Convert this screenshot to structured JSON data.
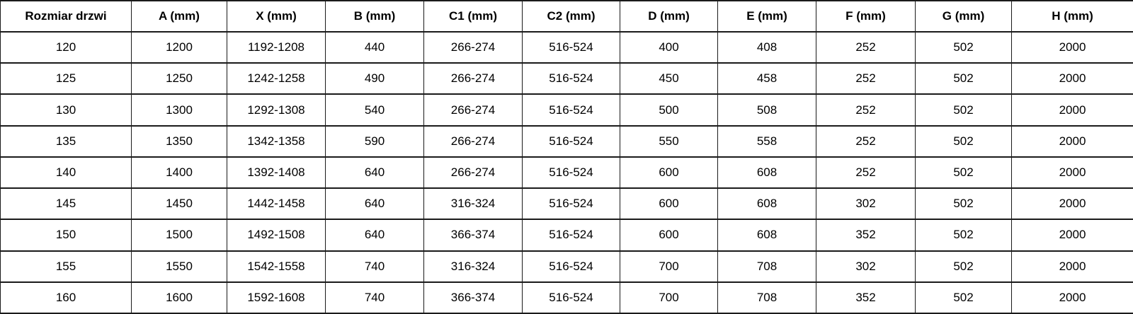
{
  "table": {
    "columns": [
      "Rozmiar drzwi",
      "A (mm)",
      "X (mm)",
      "B (mm)",
      "C1 (mm)",
      "C2 (mm)",
      "D (mm)",
      "E (mm)",
      "F (mm)",
      "G (mm)",
      "H (mm)"
    ],
    "rows": [
      [
        "120",
        "1200",
        "1192-1208",
        "440",
        "266-274",
        "516-524",
        "400",
        "408",
        "252",
        "502",
        "2000"
      ],
      [
        "125",
        "1250",
        "1242-1258",
        "490",
        "266-274",
        "516-524",
        "450",
        "458",
        "252",
        "502",
        "2000"
      ],
      [
        "130",
        "1300",
        "1292-1308",
        "540",
        "266-274",
        "516-524",
        "500",
        "508",
        "252",
        "502",
        "2000"
      ],
      [
        "135",
        "1350",
        "1342-1358",
        "590",
        "266-274",
        "516-524",
        "550",
        "558",
        "252",
        "502",
        "2000"
      ],
      [
        "140",
        "1400",
        "1392-1408",
        "640",
        "266-274",
        "516-524",
        "600",
        "608",
        "252",
        "502",
        "2000"
      ],
      [
        "145",
        "1450",
        "1442-1458",
        "640",
        "316-324",
        "516-524",
        "600",
        "608",
        "302",
        "502",
        "2000"
      ],
      [
        "150",
        "1500",
        "1492-1508",
        "640",
        "366-374",
        "516-524",
        "600",
        "608",
        "352",
        "502",
        "2000"
      ],
      [
        "155",
        "1550",
        "1542-1558",
        "740",
        "316-324",
        "516-524",
        "700",
        "708",
        "302",
        "502",
        "2000"
      ],
      [
        "160",
        "1600",
        "1592-1608",
        "740",
        "366-374",
        "516-524",
        "700",
        "708",
        "352",
        "502",
        "2000"
      ]
    ],
    "colors": {
      "border": "#1a1a1a",
      "text": "#000000",
      "background": "#ffffff"
    }
  }
}
